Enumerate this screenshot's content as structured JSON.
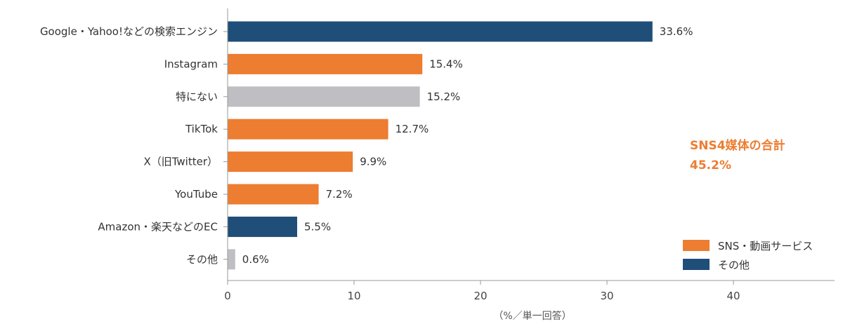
{
  "chart_data": {
    "type": "bar",
    "orientation": "horizontal",
    "categories": [
      "Google・Yahoo!などの検索エンジン",
      "Instagram",
      "特にない",
      "TikTok",
      "X（旧Twitter）",
      "YouTube",
      "Amazon・楽天などのEC",
      "その他"
    ],
    "values": [
      33.6,
      15.4,
      15.2,
      12.7,
      9.9,
      7.2,
      5.5,
      0.6
    ],
    "value_labels": [
      "33.6%",
      "15.4%",
      "15.2%",
      "12.7%",
      "9.9%",
      "7.2%",
      "5.5%",
      "0.6%"
    ],
    "bar_group": [
      "other",
      "sns",
      "none",
      "sns",
      "sns",
      "sns",
      "other",
      "none"
    ],
    "xlabel": "（%／単一回答）",
    "xlim": [
      0,
      48
    ],
    "xticks": [
      0,
      10,
      20,
      30,
      40
    ],
    "grid": false,
    "legend_placement": "bottom-right",
    "legend": [
      {
        "key": "sns",
        "label": "SNS・動画サービス"
      },
      {
        "key": "other",
        "label": "その他"
      }
    ],
    "annotation": {
      "line1": "SNS4媒体の合計",
      "line2": "45.2%"
    },
    "colors": {
      "sns": "#ED7D31",
      "other": "#1F4E79",
      "none": "#BFBEC3",
      "annotation": "#ED7D31"
    }
  }
}
